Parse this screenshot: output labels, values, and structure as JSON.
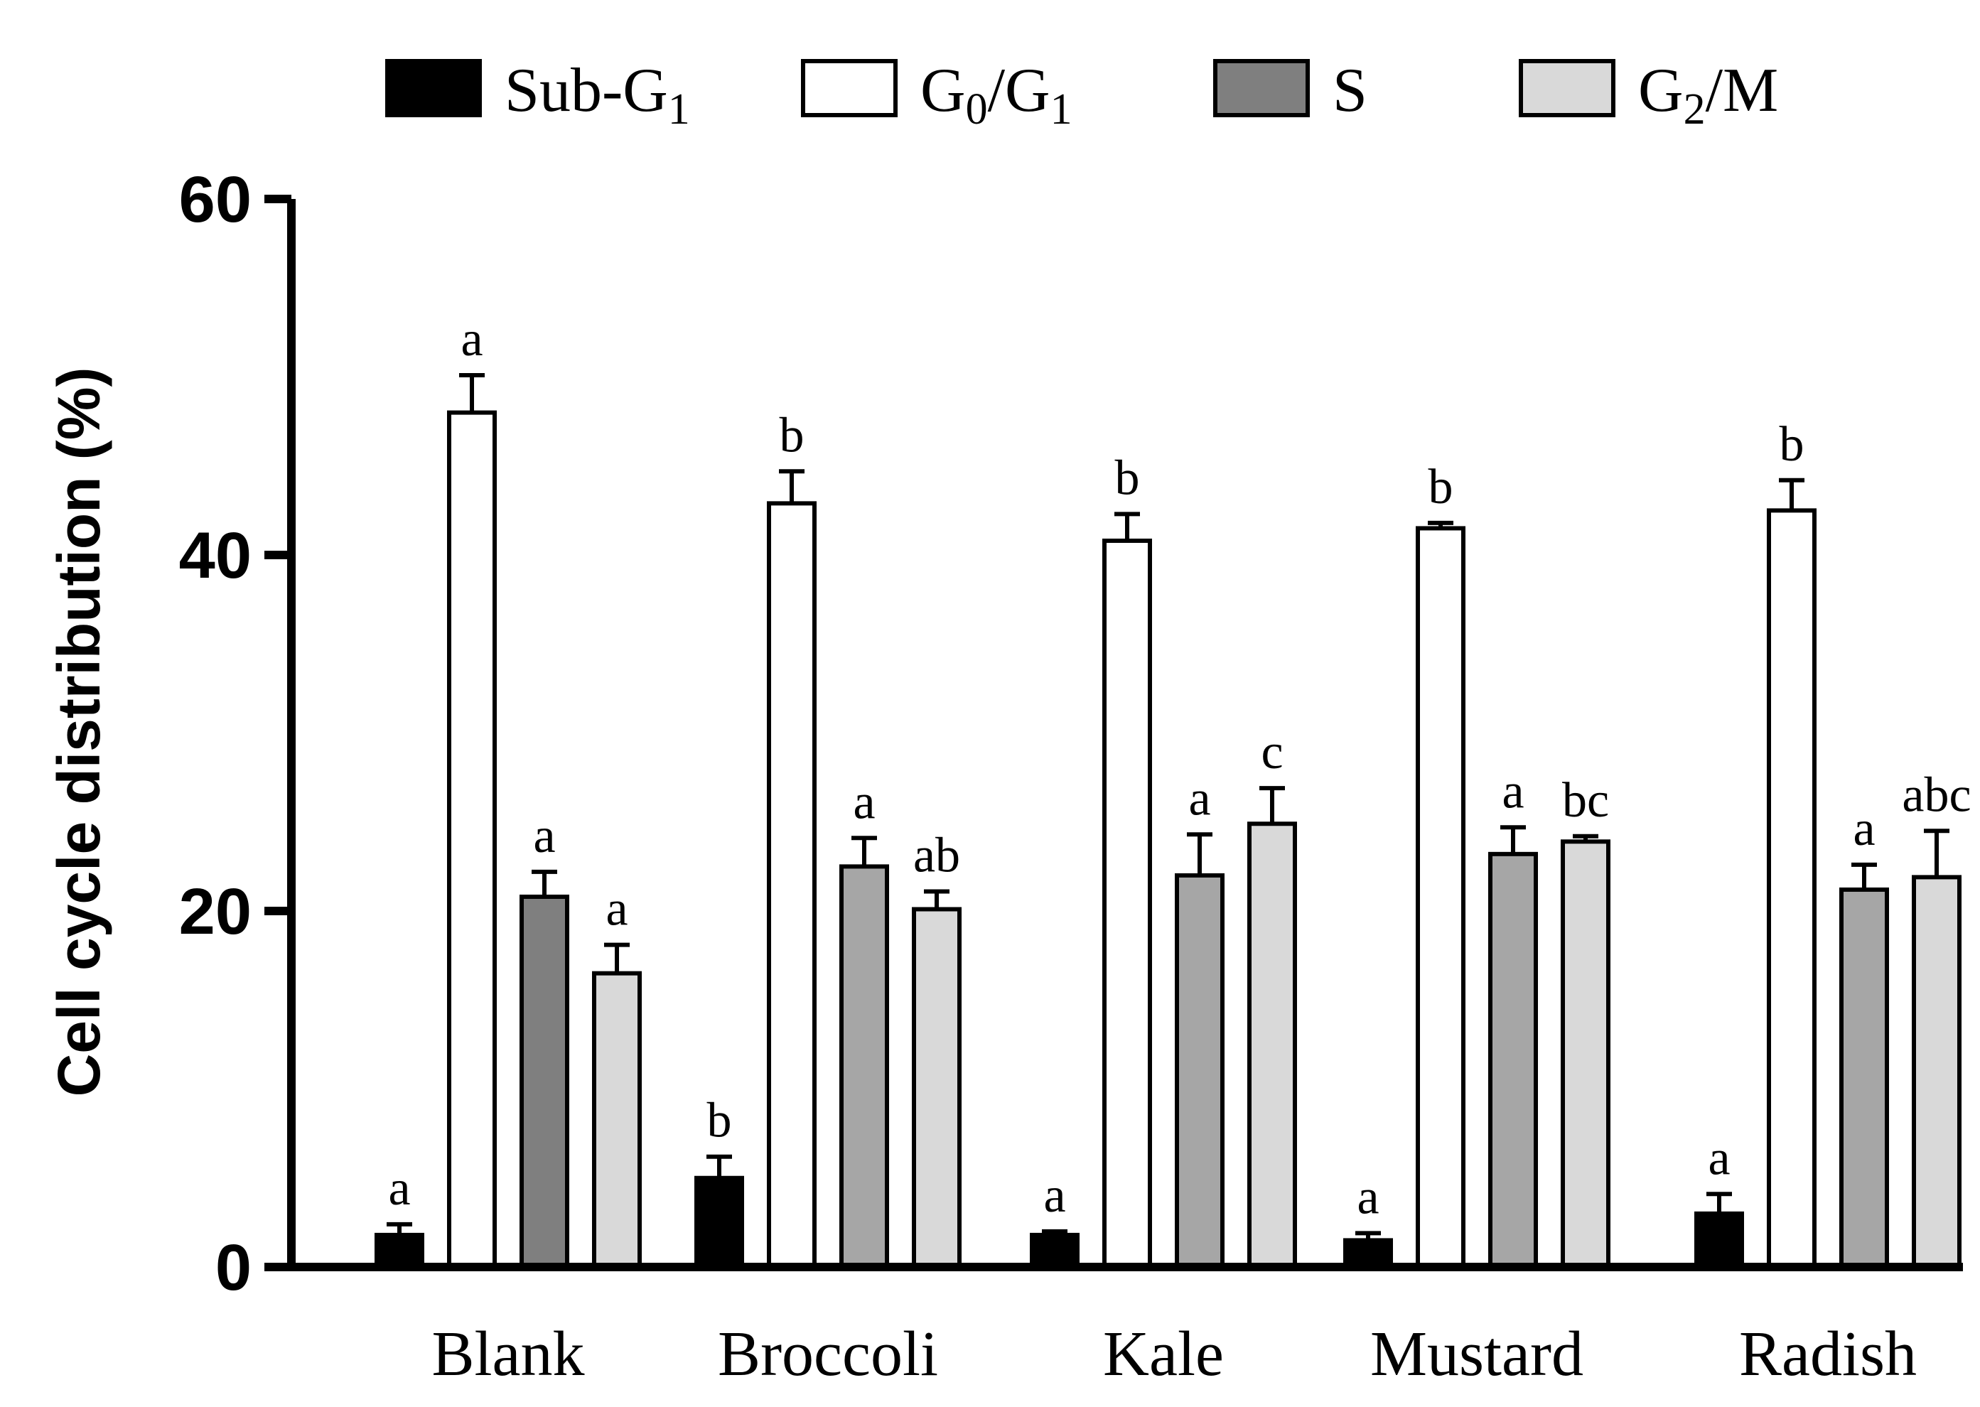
{
  "chart_data": {
    "type": "bar",
    "title": "",
    "xlabel": "",
    "ylabel": "Cell cycle distribution (%)",
    "ylim": [
      0,
      60
    ],
    "yticks": [
      0,
      20,
      40,
      60
    ],
    "grid": false,
    "legend_position": "top",
    "categories": [
      "Blank",
      "Broccoli",
      "Kale",
      "Mustard",
      "Radish"
    ],
    "series": [
      {
        "name": "Sub-G1",
        "legend": {
          "base": "Sub-G",
          "sub": "1",
          "rest": ""
        },
        "color": "#000000",
        "values": [
          1.8,
          5.0,
          1.8,
          1.5,
          3.0
        ],
        "errors": [
          0.6,
          1.2,
          0.2,
          0.4,
          1.1
        ],
        "letters": [
          "a",
          "b",
          "a",
          "a",
          "a"
        ]
      },
      {
        "name": "G0/G1",
        "legend": {
          "base": "G",
          "sub": "0",
          "rest": "/G",
          "sub2": "1"
        },
        "color": "#ffffff",
        "values": [
          48.0,
          42.9,
          40.8,
          41.5,
          42.5
        ],
        "errors": [
          2.1,
          1.8,
          1.5,
          0.3,
          1.7
        ],
        "letters": [
          "a",
          "b",
          "b",
          "b",
          "b"
        ]
      },
      {
        "name": "S",
        "legend": {
          "base": "S",
          "sub": "",
          "rest": ""
        },
        "colors_by_category": [
          "#7f7f7f",
          "#a6a6a6",
          "#a6a6a6",
          "#a6a6a6",
          "#a6a6a6"
        ],
        "color": "#7f7f7f",
        "values": [
          20.8,
          22.5,
          22.0,
          23.2,
          21.2
        ],
        "errors": [
          1.4,
          1.6,
          2.3,
          1.5,
          1.4
        ],
        "letters": [
          "a",
          "a",
          "a",
          "a",
          "a"
        ]
      },
      {
        "name": "G2/M",
        "legend": {
          "base": "G",
          "sub": "2",
          "rest": "/M"
        },
        "color": "#d9d9d9",
        "values": [
          16.5,
          20.1,
          24.9,
          23.9,
          21.9
        ],
        "errors": [
          1.6,
          1.0,
          2.0,
          0.3,
          2.6
        ],
        "letters": [
          "a",
          "ab",
          "c",
          "bc",
          "abc"
        ]
      }
    ]
  }
}
